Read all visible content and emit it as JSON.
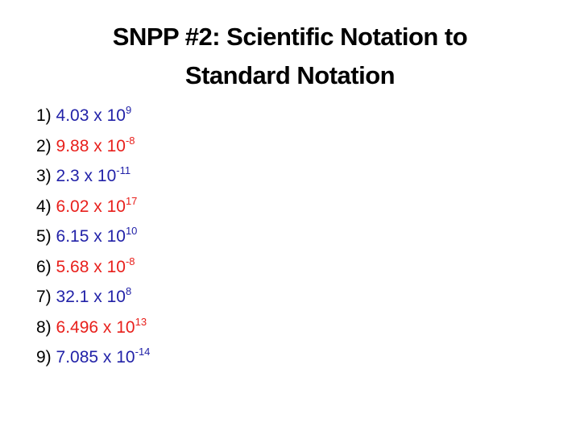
{
  "title_lines": [
    "SNPP #2:  Scientific Notation to",
    "Standard Notation"
  ],
  "items": [
    {
      "number": "1)",
      "base": "4.03 x 10",
      "exponent": "9",
      "color": "#2222a8"
    },
    {
      "number": "2)",
      "base": "9.88 x 10",
      "exponent": "-8",
      "color": "#e8201c"
    },
    {
      "number": "3)",
      "base": "2.3 x 10",
      "exponent": "-11",
      "color": "#2222a8"
    },
    {
      "number": "4)",
      "base": "6.02 x 10",
      "exponent": "17",
      "color": "#e8201c"
    },
    {
      "number": "5)",
      "base": "6.15 x 10",
      "exponent": "10",
      "color": "#2222a8"
    },
    {
      "number": "6)",
      "base": "5.68 x 10",
      "exponent": "-8",
      "color": "#e8201c"
    },
    {
      "number": "7)",
      "base": "32.1 x 10",
      "exponent": "8",
      "color": "#2222a8"
    },
    {
      "number": "8)",
      "base": "6.496 x 10",
      "exponent": "13",
      "color": "#e8201c"
    },
    {
      "number": "9)",
      "base": "7.085 x 10",
      "exponent": "-14",
      "color": "#2222a8"
    }
  ]
}
